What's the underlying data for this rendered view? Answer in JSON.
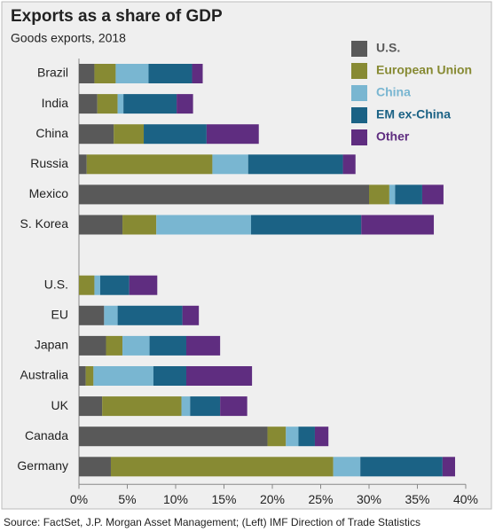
{
  "chart_data": {
    "type": "stacked-bar-horizontal",
    "title": "Exports as a share of GDP",
    "subtitle": "Goods exports, 2018",
    "categories": [
      "Brazil",
      "India",
      "China",
      "Russia",
      "Mexico",
      "S. Korea",
      null,
      "U.S.",
      "EU",
      "Japan",
      "Australia",
      "UK",
      "Canada",
      "Germany"
    ],
    "series": [
      {
        "name": "U.S.",
        "color": "#595959",
        "values": [
          1.6,
          1.9,
          3.6,
          0.8,
          30.0,
          4.5,
          null,
          0,
          2.6,
          2.8,
          0.7,
          2.4,
          19.5,
          3.3
        ]
      },
      {
        "name": "European Union",
        "color": "#878a33",
        "values": [
          2.2,
          2.1,
          3.1,
          13.0,
          2.1,
          3.5,
          null,
          1.6,
          0,
          1.7,
          0.8,
          8.2,
          1.9,
          23.0
        ]
      },
      {
        "name": "China",
        "color": "#79b6d1",
        "values": [
          3.4,
          0.6,
          0,
          3.7,
          0.6,
          9.8,
          null,
          0.6,
          1.4,
          2.8,
          6.2,
          0.9,
          1.3,
          2.8
        ]
      },
      {
        "name": "EM ex-China",
        "color": "#1b6285",
        "values": [
          4.5,
          5.5,
          6.5,
          9.8,
          2.8,
          11.4,
          null,
          3.0,
          6.7,
          3.8,
          3.4,
          3.1,
          1.7,
          8.5
        ]
      },
      {
        "name": "Other",
        "color": "#5f2d80",
        "values": [
          1.1,
          1.7,
          5.4,
          1.3,
          2.2,
          7.5,
          null,
          2.9,
          1.7,
          3.5,
          6.8,
          2.8,
          1.4,
          1.3
        ]
      }
    ],
    "xlim": [
      0,
      40
    ],
    "xticks": [
      {
        "value": 0,
        "label": "0%"
      },
      {
        "value": 5,
        "label": "5%"
      },
      {
        "value": 10,
        "label": "10%"
      },
      {
        "value": 15,
        "label": "15%"
      },
      {
        "value": 20,
        "label": "20%"
      },
      {
        "value": 25,
        "label": "25%"
      },
      {
        "value": 30,
        "label": "30%"
      },
      {
        "value": 35,
        "label": "35%"
      },
      {
        "value": 40,
        "label": "40%"
      }
    ],
    "legend": "top-right",
    "source": "Source: FactSet, J.P. Morgan Asset Management; (Left) IMF Direction of Trade Statistics"
  }
}
